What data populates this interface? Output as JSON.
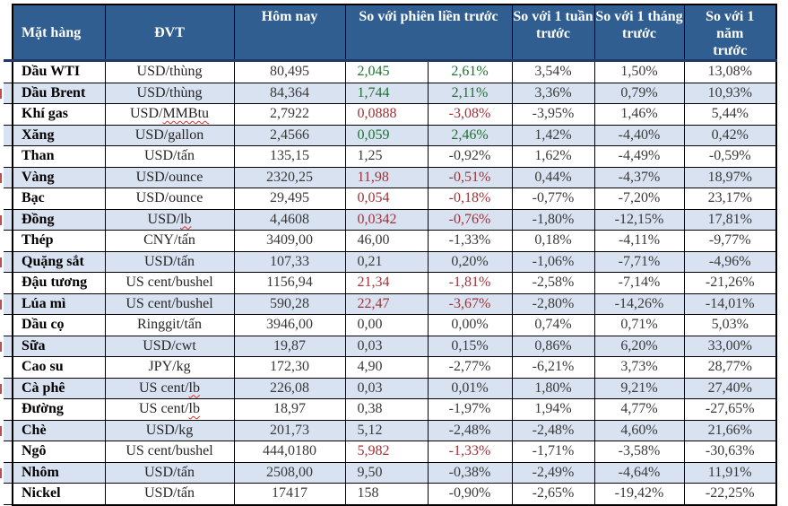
{
  "table": {
    "title_semantic": "commodity-price-table",
    "headers": {
      "commodity": "Mặt hàng",
      "unit": "ĐVT",
      "today": "Hôm nay",
      "vs_prev_session": "So với phiên liền trước",
      "vs_week": "So với 1 tuần trước",
      "vs_month": "So với 1 tháng trước",
      "vs_year": "So với 1 năm trước"
    },
    "rows": [
      {
        "name": "Dầu WTI",
        "unit": "USD/thùng",
        "today": "80,495",
        "change": "2,045",
        "pct": "2,61%",
        "week": "3,54%",
        "month": "1,50%",
        "year": "13,08%",
        "color": "green"
      },
      {
        "name": "Dầu Brent",
        "unit": "USD/thùng",
        "today": "84,364",
        "change": "1,744",
        "pct": "2,11%",
        "week": "3,36%",
        "month": "0,79%",
        "year": "10,93%",
        "color": "green"
      },
      {
        "name": "Khí gas",
        "unit": "USD/MMBtu",
        "flag": "MMBtu",
        "today": "2,7922",
        "change": "0,0888",
        "pct": "-3,08%",
        "week": "-3,95%",
        "month": "1,46%",
        "year": "5,44%",
        "color": "red"
      },
      {
        "name": "Xăng",
        "unit": "USD/gallon",
        "today": "2,4566",
        "change": "0,059",
        "pct": "2,46%",
        "week": "1,42%",
        "month": "-4,40%",
        "year": "0,42%",
        "color": "green"
      },
      {
        "name": "Than",
        "unit": "USD/tấn",
        "today": "135,15",
        "change": "1,25",
        "pct": "-0,92%",
        "week": "1,62%",
        "month": "-4,49%",
        "year": "-0,59%",
        "color": "none"
      },
      {
        "name": "Vàng",
        "unit": "USD/ounce",
        "today": "2320,25",
        "change": "11,98",
        "pct": "-0,51%",
        "week": "0,44%",
        "month": "-4,37%",
        "year": "18,97%",
        "color": "red"
      },
      {
        "name": "Bạc",
        "unit": "USD/ounce",
        "today": "29,495",
        "change": "0,054",
        "pct": "-0,18%",
        "week": "-0,77%",
        "month": "-7,20%",
        "year": "23,17%",
        "color": "red"
      },
      {
        "name": "Đồng",
        "unit": "USD/lb",
        "flag": "lb",
        "today": "4,4608",
        "change": "0,0342",
        "pct": "-0,76%",
        "week": "-1,80%",
        "month": "-12,15%",
        "year": "17,81%",
        "color": "red"
      },
      {
        "name": "Thép",
        "unit": "CNY/tấn",
        "today": "3409,00",
        "change": "46,00",
        "pct": "-1,33%",
        "week": "0,18%",
        "month": "-4,11%",
        "year": "-9,77%",
        "color": "none"
      },
      {
        "name": "Quặng sắt",
        "unit": "USD/tấn",
        "today": "107,33",
        "change": "0,21",
        "pct": "0,20%",
        "week": "-1,06%",
        "month": "-7,71%",
        "year": "-4,96%",
        "color": "none"
      },
      {
        "name": "Đậu tương",
        "unit": "US cent/bushel",
        "today": "1156,94",
        "change": "21,34",
        "pct": "-1,81%",
        "week": "-2,58%",
        "month": "-7,14%",
        "year": "-21,26%",
        "color": "red"
      },
      {
        "name": "Lúa mì",
        "unit": "US cent/bushel",
        "today": "590,28",
        "change": "22,47",
        "pct": "-3,67%",
        "week": "-2,80%",
        "month": "-14,26%",
        "year": "-14,01%",
        "color": "red"
      },
      {
        "name": "Dầu cọ",
        "unit": "Ringgit/tấn",
        "today": "3946,00",
        "change": "0,00",
        "pct": "0,00%",
        "week": "0,74%",
        "month": "0,71%",
        "year": "5,03%",
        "color": "none"
      },
      {
        "name": "Sữa",
        "unit": "USD/cwt",
        "today": "19,87",
        "change": "0,03",
        "pct": "0,15%",
        "week": "0,86%",
        "month": "6,20%",
        "year": "33,00%",
        "color": "none"
      },
      {
        "name": "Cao su",
        "unit": "JPY/kg",
        "today": "172,30",
        "change": "4,90",
        "pct": "-2,77%",
        "week": "-6,21%",
        "month": "3,73%",
        "year": "28,77%",
        "color": "none"
      },
      {
        "name": "Cà phê",
        "unit": "US cent/lb",
        "flag": "lb",
        "today": "226,08",
        "change": "0,03",
        "pct": "0,01%",
        "week": "1,80%",
        "month": "9,21%",
        "year": "27,40%",
        "color": "none"
      },
      {
        "name": "Đường",
        "unit": "US cent/lb",
        "flag": "lb",
        "today": "18,97",
        "change": "0,38",
        "pct": "-1,97%",
        "week": "1,94%",
        "month": "4,77%",
        "year": "-27,65%",
        "color": "none"
      },
      {
        "name": "Chè",
        "unit": "USD/kg",
        "today": "201,73",
        "change": "5,12",
        "pct": "-2,48%",
        "week": "-2,48%",
        "month": "4,60%",
        "year": "21,66%",
        "color": "none"
      },
      {
        "name": "Ngô",
        "unit": "US cent/bushel",
        "today": "444,0180",
        "change": "5,982",
        "pct": "-1,33%",
        "week": "-1,71%",
        "month": "-3,58%",
        "year": "-30,63%",
        "color": "red"
      },
      {
        "name": "Nhôm",
        "unit": "USD/tấn",
        "today": "2508,00",
        "change": "9,50",
        "pct": "-0,38%",
        "week": "-2,49%",
        "month": "-4,64%",
        "year": "11,91%",
        "color": "none"
      },
      {
        "name": "Nickel",
        "unit": "USD/tấn",
        "today": "17417",
        "change": "158",
        "pct": "-0,90%",
        "week": "-2,65%",
        "month": "-19,42%",
        "year": "-22,25%",
        "color": "none"
      }
    ],
    "revision_marked_rows": [
      2,
      6,
      8,
      10,
      12,
      14,
      16,
      18,
      20
    ]
  },
  "colors": {
    "header_bg": "#305E90",
    "header_divider": "#1F3864",
    "row_alt_bg": "#D9E2F1",
    "positive": "#1E7033",
    "negative": "#9D3238",
    "spellcheck": "#E03030",
    "revision_mark": "#C05050"
  }
}
